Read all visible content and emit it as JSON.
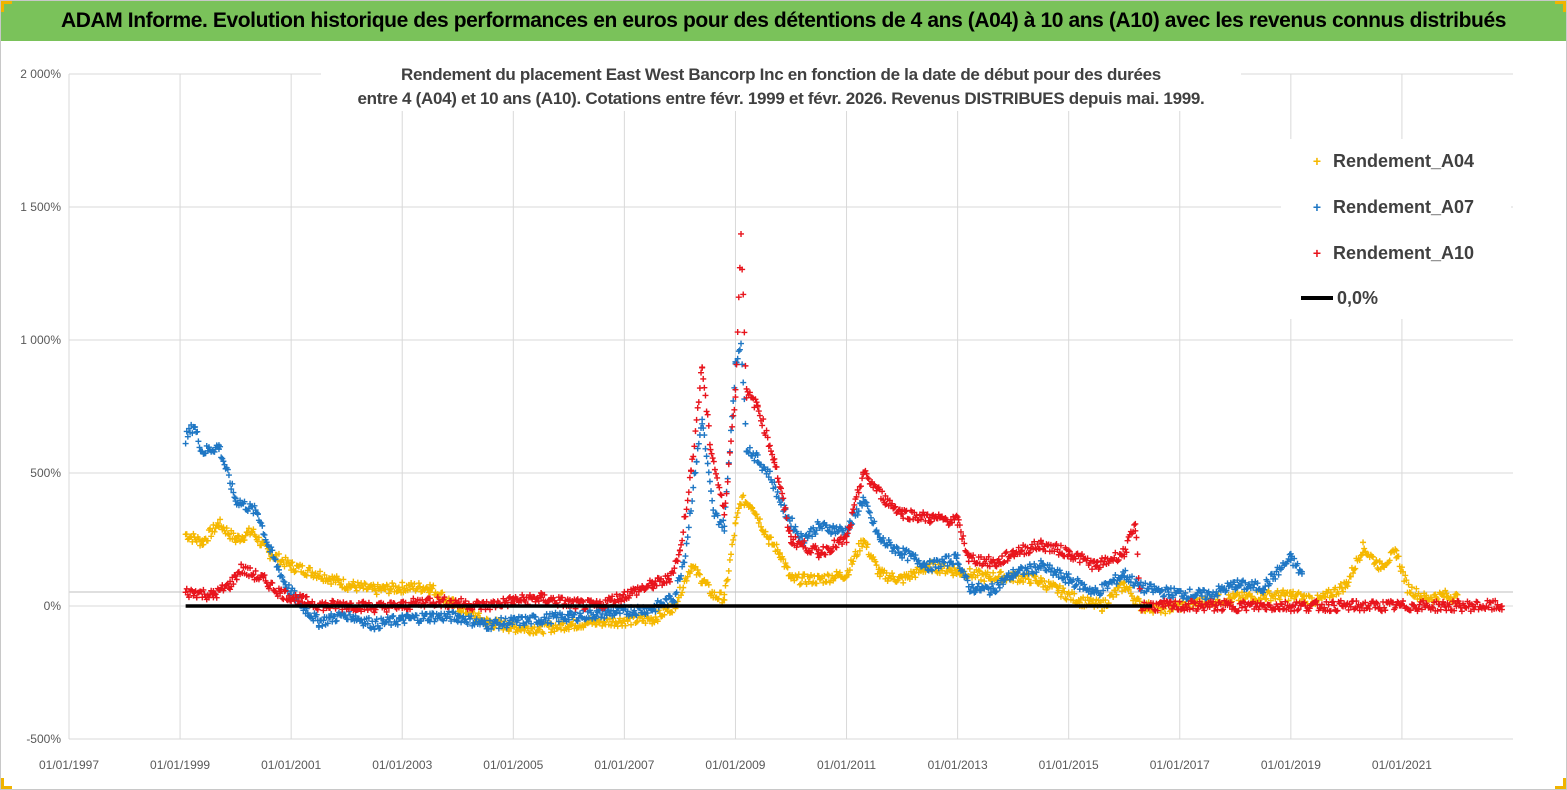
{
  "banner": {
    "title": "ADAM Informe. Evolution historique des performances en euros pour des détentions de 4 ans (A04) à 10 ans (A10) avec les revenus connus distribués"
  },
  "colors": {
    "banner": "#7ac25a",
    "a04": "#f5b800",
    "a07": "#1f77c4",
    "a10": "#e8141c",
    "zero": "#000000",
    "grid": "#d9d9d9"
  },
  "chart_data": {
    "type": "scatter",
    "title_line1": "Rendement du placement East West Bancorp Inc en fonction de la date de début pour des durées",
    "title_line2": "entre 4 (A04) et 10 ans (A10). Cotations entre févr. 1999 et févr. 2026. Revenus DISTRIBUES depuis mai. 1999.",
    "xlabel": "",
    "ylabel": "",
    "xlim": [
      1997.0,
      2023.0
    ],
    "ylim": [
      -500,
      2000
    ],
    "y_ticks": [
      {
        "value": 2000,
        "label": "2 000%"
      },
      {
        "value": 1500,
        "label": "1 500%"
      },
      {
        "value": 1000,
        "label": "1 000%"
      },
      {
        "value": 500,
        "label": "500%"
      },
      {
        "value": 0,
        "label": "0%"
      },
      {
        "value": -500,
        "label": "-500%"
      }
    ],
    "x_ticks": [
      {
        "value": 1997,
        "label": "01/01/1997"
      },
      {
        "value": 1999,
        "label": "01/01/1999"
      },
      {
        "value": 2001,
        "label": "01/01/2001"
      },
      {
        "value": 2003,
        "label": "01/01/2003"
      },
      {
        "value": 2005,
        "label": "01/01/2005"
      },
      {
        "value": 2007,
        "label": "01/01/2007"
      },
      {
        "value": 2009,
        "label": "01/01/2009"
      },
      {
        "value": 2011,
        "label": "01/01/2011"
      },
      {
        "value": 2013,
        "label": "01/01/2013"
      },
      {
        "value": 2015,
        "label": "01/01/2015"
      },
      {
        "value": 2017,
        "label": "01/01/2017"
      },
      {
        "value": 2019,
        "label": "01/01/2019"
      },
      {
        "value": 2021,
        "label": "01/01/2021"
      }
    ],
    "legend": [
      "Rendement_A04",
      "Rendement_A07",
      "Rendement_A10",
      "0,0%"
    ],
    "legend_position": "top-right",
    "series": [
      {
        "name": "Rendement_A04",
        "anchors": [
          [
            1999.1,
            270
          ],
          [
            1999.4,
            240
          ],
          [
            1999.7,
            310
          ],
          [
            2000.0,
            250
          ],
          [
            2000.3,
            280
          ],
          [
            2000.6,
            200
          ],
          [
            2001.0,
            150
          ],
          [
            2001.5,
            120
          ],
          [
            2002.0,
            80
          ],
          [
            2002.5,
            60
          ],
          [
            2003.0,
            70
          ],
          [
            2003.5,
            70
          ],
          [
            2003.9,
            10
          ],
          [
            2004.5,
            -60
          ],
          [
            2005.0,
            -80
          ],
          [
            2005.5,
            -85
          ],
          [
            2006.0,
            -70
          ],
          [
            2006.5,
            -60
          ],
          [
            2007.0,
            -55
          ],
          [
            2007.5,
            -50
          ],
          [
            2007.9,
            0
          ],
          [
            2008.2,
            150
          ],
          [
            2008.4,
            100
          ],
          [
            2008.6,
            40
          ],
          [
            2008.8,
            30
          ],
          [
            2009.0,
            300
          ],
          [
            2009.1,
            400
          ],
          [
            2009.3,
            380
          ],
          [
            2009.6,
            250
          ],
          [
            2009.8,
            200
          ],
          [
            2010.0,
            100
          ],
          [
            2010.5,
            100
          ],
          [
            2011.0,
            120
          ],
          [
            2011.3,
            250
          ],
          [
            2011.6,
            120
          ],
          [
            2012.0,
            100
          ],
          [
            2012.5,
            150
          ],
          [
            2013.0,
            130
          ],
          [
            2013.5,
            110
          ],
          [
            2014.0,
            110
          ],
          [
            2014.4,
            100
          ],
          [
            2014.8,
            60
          ],
          [
            2015.2,
            20
          ],
          [
            2015.6,
            0
          ],
          [
            2016.0,
            80
          ],
          [
            2016.3,
            0
          ],
          [
            2016.7,
            -10
          ],
          [
            2017.0,
            0
          ],
          [
            2017.5,
            20
          ],
          [
            2018.0,
            30
          ],
          [
            2018.5,
            40
          ],
          [
            2019.0,
            40
          ],
          [
            2019.5,
            20
          ],
          [
            2020.0,
            80
          ],
          [
            2020.3,
            220
          ],
          [
            2020.6,
            150
          ],
          [
            2020.9,
            200
          ],
          [
            2021.1,
            70
          ],
          [
            2021.4,
            30
          ],
          [
            2021.8,
            40
          ],
          [
            2022.0,
            30
          ]
        ]
      },
      {
        "name": "Rendement_A07",
        "anchors": [
          [
            1999.1,
            630
          ],
          [
            1999.25,
            680
          ],
          [
            1999.4,
            580
          ],
          [
            1999.7,
            600
          ],
          [
            2000.0,
            400
          ],
          [
            2000.4,
            350
          ],
          [
            2000.6,
            220
          ],
          [
            2000.9,
            80
          ],
          [
            2001.2,
            0
          ],
          [
            2001.5,
            -60
          ],
          [
            2002.0,
            -30
          ],
          [
            2002.5,
            -70
          ],
          [
            2003.0,
            -50
          ],
          [
            2003.5,
            -40
          ],
          [
            2004.0,
            -40
          ],
          [
            2004.5,
            -70
          ],
          [
            2005.0,
            -60
          ],
          [
            2005.5,
            -50
          ],
          [
            2006.0,
            -40
          ],
          [
            2006.5,
            -30
          ],
          [
            2007.0,
            -20
          ],
          [
            2007.5,
            -10
          ],
          [
            2007.9,
            30
          ],
          [
            2008.1,
            200
          ],
          [
            2008.3,
            550
          ],
          [
            2008.4,
            700
          ],
          [
            2008.6,
            350
          ],
          [
            2008.8,
            300
          ],
          [
            2009.0,
            900
          ],
          [
            2009.1,
            1000
          ],
          [
            2009.2,
            600
          ],
          [
            2009.4,
            550
          ],
          [
            2009.6,
            500
          ],
          [
            2009.9,
            350
          ],
          [
            2010.2,
            250
          ],
          [
            2010.5,
            300
          ],
          [
            2011.0,
            280
          ],
          [
            2011.3,
            400
          ],
          [
            2011.6,
            250
          ],
          [
            2012.0,
            200
          ],
          [
            2012.5,
            150
          ],
          [
            2013.0,
            180
          ],
          [
            2013.2,
            70
          ],
          [
            2013.6,
            60
          ],
          [
            2014.0,
            120
          ],
          [
            2014.5,
            150
          ],
          [
            2015.0,
            100
          ],
          [
            2015.5,
            50
          ],
          [
            2016.0,
            120
          ],
          [
            2016.3,
            70
          ],
          [
            2016.8,
            50
          ],
          [
            2017.5,
            40
          ],
          [
            2018.0,
            80
          ],
          [
            2018.5,
            70
          ],
          [
            2019.0,
            180
          ],
          [
            2019.2,
            120
          ]
        ]
      },
      {
        "name": "Rendement_A10",
        "anchors": [
          [
            1999.1,
            50
          ],
          [
            1999.3,
            50
          ],
          [
            1999.6,
            40
          ],
          [
            1999.9,
            80
          ],
          [
            2000.1,
            140
          ],
          [
            2000.5,
            100
          ],
          [
            2000.8,
            50
          ],
          [
            2001.2,
            20
          ],
          [
            2001.6,
            0
          ],
          [
            2002.0,
            5
          ],
          [
            2002.5,
            -5
          ],
          [
            2003.0,
            0
          ],
          [
            2003.5,
            20
          ],
          [
            2004.0,
            10
          ],
          [
            2004.5,
            0
          ],
          [
            2005.0,
            20
          ],
          [
            2005.5,
            30
          ],
          [
            2006.0,
            10
          ],
          [
            2006.5,
            0
          ],
          [
            2007.0,
            40
          ],
          [
            2007.5,
            80
          ],
          [
            2007.8,
            100
          ],
          [
            2008.0,
            200
          ],
          [
            2008.2,
            500
          ],
          [
            2008.4,
            900
          ],
          [
            2008.55,
            600
          ],
          [
            2008.8,
            350
          ],
          [
            2009.0,
            800
          ],
          [
            2009.1,
            1400
          ],
          [
            2009.2,
            800
          ],
          [
            2009.4,
            750
          ],
          [
            2009.7,
            550
          ],
          [
            2010.0,
            250
          ],
          [
            2010.5,
            200
          ],
          [
            2011.0,
            250
          ],
          [
            2011.3,
            500
          ],
          [
            2011.7,
            400
          ],
          [
            2012.0,
            350
          ],
          [
            2012.5,
            330
          ],
          [
            2013.0,
            320
          ],
          [
            2013.2,
            180
          ],
          [
            2013.7,
            160
          ],
          [
            2014.0,
            200
          ],
          [
            2014.5,
            230
          ],
          [
            2015.0,
            200
          ],
          [
            2015.5,
            150
          ],
          [
            2016.0,
            200
          ],
          [
            2016.2,
            300
          ],
          [
            2016.3,
            0
          ],
          [
            2022.8,
            0
          ]
        ]
      },
      {
        "name": "0,0%",
        "x": [
          1999.1,
          2016.5
        ],
        "y": [
          0,
          0
        ]
      }
    ]
  }
}
